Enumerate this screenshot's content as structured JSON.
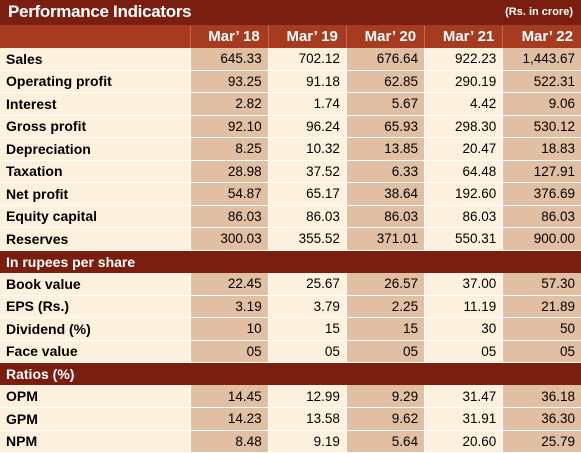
{
  "title": "Performance Indicators",
  "units": "(Rs. in crore)",
  "years": [
    "Mar’ 18",
    "Mar’ 19",
    "Mar’ 20",
    "Mar’ 21",
    "Mar’ 22"
  ],
  "sections": [
    {
      "heading": "",
      "rows": [
        {
          "label": "Sales",
          "values": [
            "645.33",
            "702.12",
            "676.64",
            "922.23",
            "1,443.67"
          ]
        },
        {
          "label": "Operating profit",
          "values": [
            "93.25",
            "91.18",
            "62.85",
            "290.19",
            "522.31"
          ]
        },
        {
          "label": "Interest",
          "values": [
            "2.82",
            "1.74",
            "5.67",
            "4.42",
            "9.06"
          ]
        },
        {
          "label": "Gross profit",
          "values": [
            "92.10",
            "96.24",
            "65.93",
            "298.30",
            "530.12"
          ]
        },
        {
          "label": "Depreciation",
          "values": [
            "8.25",
            "10.32",
            "13.85",
            "20.47",
            "18.83"
          ]
        },
        {
          "label": "Taxation",
          "values": [
            "28.98",
            "37.52",
            "6.33",
            "64.48",
            "127.91"
          ]
        },
        {
          "label": "Net profit",
          "values": [
            "54.87",
            "65.17",
            "38.64",
            "192.60",
            "376.69"
          ]
        },
        {
          "label": "Equity capital",
          "values": [
            "86.03",
            "86.03",
            "86.03",
            "86.03",
            "86.03"
          ]
        },
        {
          "label": "Reserves",
          "values": [
            "300.03",
            "355.52",
            "371.01",
            "550.31",
            "900.00"
          ]
        }
      ]
    },
    {
      "heading": "In rupees per share",
      "rows": [
        {
          "label": "Book value",
          "values": [
            "22.45",
            "25.67",
            "26.57",
            "37.00",
            "57.30"
          ]
        },
        {
          "label": "EPS (Rs.)",
          "values": [
            "3.19",
            "3.79",
            "2.25",
            "11.19",
            "21.89"
          ]
        },
        {
          "label": "Dividend (%)",
          "values": [
            "10",
            "15",
            "15",
            "30",
            "50"
          ]
        },
        {
          "label": "Face value",
          "values": [
            "05",
            "05",
            "05",
            "05",
            "05"
          ]
        }
      ]
    },
    {
      "heading": "Ratios (%)",
      "rows": [
        {
          "label": "OPM",
          "values": [
            "14.45",
            "12.99",
            "9.29",
            "31.47",
            "36.18"
          ]
        },
        {
          "label": "GPM",
          "values": [
            "14.23",
            "13.58",
            "9.62",
            "31.91",
            "36.30"
          ]
        },
        {
          "label": "NPM",
          "values": [
            "8.48",
            "9.19",
            "5.64",
            "20.60",
            "25.79"
          ]
        }
      ]
    }
  ],
  "colors": {
    "title_bg": "#7a1f10",
    "header_bg": "#a63b1f",
    "cell_dark": "#e1bfa2",
    "cell_light": "#fdf1de"
  }
}
